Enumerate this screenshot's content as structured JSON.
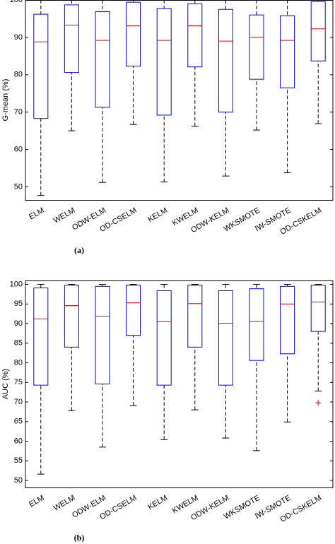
{
  "chart_data": [
    {
      "type": "box",
      "caption": "(a)",
      "y_label": "G-mean (%)",
      "categories": [
        "ELM",
        "WELM",
        "ODW-ELM",
        "OD-CSELM",
        "KELM",
        "KWELM",
        "ODW-KELM",
        "WKSMOTE",
        "IW-SMOTE",
        "OD-CSKELM"
      ],
      "whisker_low": [
        47.7,
        65.0,
        51.2,
        66.7,
        51.3,
        66.2,
        52.9,
        65.2,
        53.8,
        66.9
      ],
      "q1": [
        68.3,
        80.6,
        71.3,
        82.3,
        69.2,
        82.1,
        70.0,
        78.8,
        76.5,
        83.7
      ],
      "median": [
        88.8,
        93.3,
        89.2,
        93.1,
        89.2,
        93.1,
        89.0,
        90.0,
        89.2,
        92.3
      ],
      "q3": [
        96.2,
        98.7,
        96.9,
        99.4,
        97.7,
        99.0,
        97.5,
        96.0,
        95.8,
        99.6
      ],
      "whisker_high": [
        100,
        100,
        100,
        100,
        100,
        100,
        100,
        100,
        100,
        100
      ],
      "box_color": "#0000ff",
      "median_color": "#ff0000",
      "ylim": [
        46.5,
        100
      ],
      "yticks": [
        50,
        60,
        70,
        80,
        90,
        100
      ]
    },
    {
      "type": "box",
      "caption": "(b)",
      "y_label": "AUC (%)",
      "categories": [
        "ELM",
        "WELM",
        "ODW-ELM",
        "OD-CSELM",
        "KELM",
        "KWELM",
        "ODW-KELM",
        "WKSMOTE",
        "IW-SMOTE",
        "OD-CSKELM"
      ],
      "whisker_low": [
        51.6,
        67.8,
        58.5,
        69.1,
        60.4,
        68.0,
        60.8,
        57.6,
        64.9,
        72.8
      ],
      "q1": [
        74.3,
        84.0,
        74.6,
        87.0,
        74.3,
        84.0,
        74.3,
        80.6,
        82.3,
        88.0
      ],
      "median": [
        91.2,
        94.6,
        91.9,
        95.3,
        90.5,
        95.1,
        90.1,
        90.5,
        95.0,
        95.5
      ],
      "q3": [
        99.1,
        99.8,
        99.5,
        99.8,
        98.4,
        99.8,
        98.4,
        98.9,
        99.5,
        99.8
      ],
      "whisker_high": [
        100,
        100,
        100,
        100,
        100,
        100,
        100,
        100,
        100,
        100
      ],
      "outliers": [
        null,
        null,
        null,
        null,
        null,
        null,
        null,
        null,
        null,
        69.8
      ],
      "box_color": "#0000ff",
      "median_color": "#ff0000",
      "ylim": [
        48.2,
        101
      ],
      "yticks": [
        50,
        55,
        60,
        65,
        70,
        75,
        80,
        85,
        90,
        95,
        100
      ]
    }
  ]
}
